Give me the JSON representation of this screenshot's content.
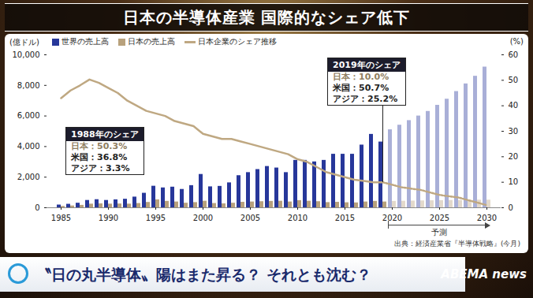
{
  "chart_data": {
    "type": "bar",
    "title": "日本の半導体産業 国際的なシェア低下",
    "x": [
      1985,
      1986,
      1987,
      1988,
      1989,
      1990,
      1991,
      1992,
      1993,
      1994,
      1995,
      1996,
      1997,
      1998,
      1999,
      2000,
      2001,
      2002,
      2003,
      2004,
      2005,
      2006,
      2007,
      2008,
      2009,
      2010,
      2011,
      2012,
      2013,
      2014,
      2015,
      2016,
      2017,
      2018,
      2019,
      2020,
      2021,
      2022,
      2023,
      2024,
      2025,
      2026,
      2027,
      2028,
      2029,
      2030
    ],
    "xticks": [
      1985,
      1990,
      1995,
      2000,
      2005,
      2010,
      2015,
      2020,
      2025,
      2030
    ],
    "ylim": [
      0,
      10000
    ],
    "yticks": [
      0,
      {
        "value": 2000,
        "label": "2,000"
      },
      {
        "value": 4000,
        "label": "4,000"
      },
      {
        "value": 6000,
        "label": "6,000"
      },
      {
        "value": 8000,
        "label": "8,000"
      },
      {
        "value": 10000,
        "label": "10,000"
      }
    ],
    "y_label": "(億ドル)",
    "y2lim": [
      0,
      60
    ],
    "y2ticks": [
      0,
      10,
      20,
      30,
      40,
      50,
      60
    ],
    "y2_label": "(%)",
    "series": [
      {
        "name": "世界の売上高",
        "color": "#27379a",
        "values": [
          180,
          230,
          300,
          480,
          530,
          480,
          520,
          560,
          700,
          950,
          1410,
          1300,
          1350,
          1200,
          1450,
          2180,
          1370,
          1400,
          1630,
          2100,
          2300,
          2500,
          2700,
          2600,
          2300,
          3100,
          3100,
          3000,
          3100,
          3500,
          3500,
          3500,
          4100,
          4800,
          4300,
          5100,
          5400,
          5700,
          6000,
          6300,
          6700,
          7100,
          7600,
          8100,
          8600,
          9200
        ]
      },
      {
        "name": "日本の売上高",
        "color": "#b8a17c",
        "values": [
          90,
          120,
          160,
          240,
          260,
          240,
          250,
          240,
          280,
          350,
          520,
          420,
          380,
          300,
          340,
          430,
          280,
          260,
          300,
          360,
          380,
          400,
          420,
          430,
          380,
          470,
          430,
          400,
          340,
          360,
          330,
          320,
          380,
          420,
          380,
          420,
          430,
          440,
          450,
          460,
          470,
          480,
          480,
          490,
          500,
          500
        ]
      },
      {
        "name": "日本企業のシェア推移",
        "type": "line",
        "axis": "y2",
        "color": "#bfa882",
        "values": [
          43,
          46,
          48,
          50.3,
          49,
          47,
          45,
          42,
          40,
          38,
          37,
          36,
          34,
          33,
          32,
          29,
          28,
          27,
          27,
          26,
          25,
          24,
          23,
          22,
          21,
          19,
          18,
          16,
          14,
          13,
          12,
          11,
          10.5,
          10,
          10.0,
          9,
          8,
          7.5,
          7,
          6,
          5,
          4.5,
          4,
          3,
          2,
          1
        ]
      }
    ],
    "legend": "top-left",
    "grid": false,
    "annotations": [
      {
        "type": "range",
        "text": "予測",
        "x": [
          2020,
          2030
        ]
      },
      {
        "type": "box",
        "x": 1988,
        "title": "1988年のシェア",
        "lines": [
          "日本：50.3%",
          "米国：36.8%",
          "アジア：3.3%"
        ]
      },
      {
        "type": "box",
        "x": 2019,
        "title": "2019年のシェア",
        "lines": [
          "日本：10.0%",
          "米国：50.7%",
          "アジア：25.2%"
        ]
      }
    ],
    "source": "出典：経済産業省『半導体戦略』(今月)",
    "banner": "〝日の丸半導体〟陽はまた昇る？ それとも沈む？",
    "logo": "ABEMA news"
  }
}
